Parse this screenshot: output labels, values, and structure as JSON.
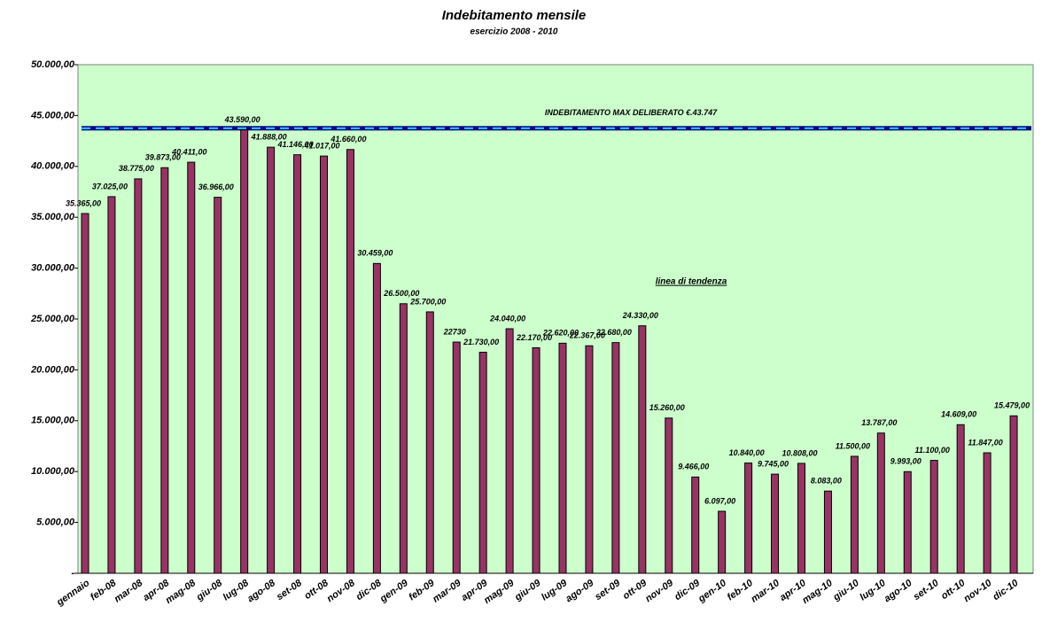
{
  "chart_data": {
    "type": "bar",
    "title": "Indebitamento mensile",
    "subtitle": "esercizio 2008 - 2010",
    "categories": [
      "gennaio",
      "feb-08",
      "mar-08",
      "apr-08",
      "mag-08",
      "giu-08",
      "lug-08",
      "ago-08",
      "set-08",
      "ott-08",
      "nov-08",
      "dic-08",
      "gen-09",
      "feb-09",
      "mar-09",
      "apr-09",
      "mag-09",
      "giu-09",
      "lug-09",
      "ago-09",
      "set-09",
      "ott-09",
      "nov-09",
      "dic-09",
      "gen-10",
      "feb-10",
      "mar-10",
      "apr-10",
      "mag-10",
      "giu-10",
      "lug-10",
      "ago-10",
      "set-10",
      "ott-10",
      "nov-10",
      "dic-10"
    ],
    "values": [
      35365,
      37025,
      38775,
      39873,
      40411,
      36966,
      43590,
      41888,
      41146,
      41017,
      41660,
      30459,
      26500,
      25700,
      22730,
      21730,
      24040,
      22170,
      22620,
      22367,
      22680,
      24330,
      15260,
      9466,
      6097,
      10840,
      9745,
      10808,
      8083,
      11500,
      13787,
      9993,
      11100,
      14609,
      11847,
      15479
    ],
    "value_labels": [
      "35.365,00",
      "37.025,00",
      "38.775,00",
      "39.873,00",
      "40.411,00",
      "36.966,00",
      "43.590,00",
      "41.888,00",
      "41.146,00",
      "41.017,00",
      "41.660,00",
      "30.459,00",
      "26.500,00",
      "25.700,00",
      "22730",
      "21.730,00",
      "24.040,00",
      "22.170,00",
      "22.620,00",
      "22.367,00",
      "22.680,00",
      "24.330,00",
      "15.260,00",
      "9.466,00",
      "6.097,00",
      "10.840,00",
      "9.745,00",
      "10.808,00",
      "8.083,00",
      "11.500,00",
      "13.787,00",
      "9.993,00",
      "11.100,00",
      "14.609,00",
      "11.847,00",
      "15.479,00"
    ],
    "color": "#993366",
    "plot_background": "#ccffcc",
    "ylim": [
      0,
      50000
    ],
    "yticks": [
      {
        "value": 0,
        "label": "-"
      },
      {
        "value": 5000,
        "label": "5.000,00"
      },
      {
        "value": 10000,
        "label": "10.000,00"
      },
      {
        "value": 15000,
        "label": "15.000,00"
      },
      {
        "value": 20000,
        "label": "20.000,00"
      },
      {
        "value": 25000,
        "label": "25.000,00"
      },
      {
        "value": 30000,
        "label": "30.000,00"
      },
      {
        "value": 35000,
        "label": "35.000,00"
      },
      {
        "value": 40000,
        "label": "40.000,00"
      },
      {
        "value": 45000,
        "label": "45.000,00"
      },
      {
        "value": 50000,
        "label": "50.000,00"
      }
    ],
    "reference_line": {
      "value": 43747,
      "label": "INDEBITAMENTO MAX DELIBERATO €.43.747",
      "color": "#000080",
      "dash_color": "#33ccff"
    },
    "annotation": "linea di tendenza"
  }
}
